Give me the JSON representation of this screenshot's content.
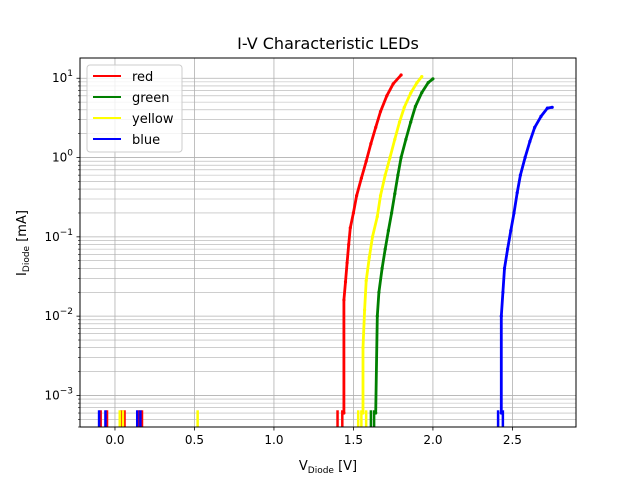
{
  "chart_data": {
    "type": "line",
    "title": "I-V Characteristic LEDs",
    "xlabel": {
      "main": "V",
      "sub": "Diode",
      "unit": " [V]"
    },
    "ylabel": {
      "main": "I",
      "sub": "Diode",
      "unit": " [mA]"
    },
    "xlim": [
      -0.22,
      2.9
    ],
    "ylim": [
      0.0004,
      18
    ],
    "yscale": "log",
    "grid": true,
    "legend_position": "top-left",
    "x_ticks": [
      {
        "value": 0.0,
        "label": "0.0"
      },
      {
        "value": 0.5,
        "label": "0.5"
      },
      {
        "value": 1.0,
        "label": "1.0"
      },
      {
        "value": 1.5,
        "label": "1.5"
      },
      {
        "value": 2.0,
        "label": "2.0"
      },
      {
        "value": 2.5,
        "label": "2.5"
      }
    ],
    "y_ticks": [
      {
        "value": 0.001,
        "base": "10",
        "exp": "−3"
      },
      {
        "value": 0.01,
        "base": "10",
        "exp": "−2"
      },
      {
        "value": 0.1,
        "base": "10",
        "exp": "−1"
      },
      {
        "value": 1,
        "base": "10",
        "exp": "0"
      },
      {
        "value": 10,
        "base": "10",
        "exp": "1"
      }
    ],
    "series": [
      {
        "name": "red",
        "color": "#ff0000",
        "points": [
          [
            1.44,
            0.0006
          ],
          [
            1.44,
            0.016
          ],
          [
            1.45,
            0.027
          ],
          [
            1.46,
            0.047
          ],
          [
            1.47,
            0.08
          ],
          [
            1.48,
            0.13
          ],
          [
            1.5,
            0.2
          ],
          [
            1.52,
            0.33
          ],
          [
            1.55,
            0.55
          ],
          [
            1.58,
            0.9
          ],
          [
            1.61,
            1.5
          ],
          [
            1.64,
            2.4
          ],
          [
            1.67,
            3.8
          ],
          [
            1.71,
            6.0
          ],
          [
            1.75,
            8.5
          ],
          [
            1.8,
            11.0
          ]
        ],
        "spikes": [
          -0.09,
          -0.05,
          0.04,
          0.06,
          0.15,
          0.17,
          1.4,
          1.43
        ]
      },
      {
        "name": "green",
        "color": "#008000",
        "points": [
          [
            1.64,
            0.0006
          ],
          [
            1.65,
            0.01
          ],
          [
            1.66,
            0.02
          ],
          [
            1.68,
            0.04
          ],
          [
            1.7,
            0.07
          ],
          [
            1.72,
            0.12
          ],
          [
            1.74,
            0.2
          ],
          [
            1.76,
            0.35
          ],
          [
            1.78,
            0.6
          ],
          [
            1.8,
            1.0
          ],
          [
            1.83,
            1.7
          ],
          [
            1.86,
            2.8
          ],
          [
            1.89,
            4.4
          ],
          [
            1.93,
            6.6
          ],
          [
            1.97,
            8.8
          ],
          [
            2.0,
            9.8
          ]
        ],
        "spikes": [
          1.61,
          1.63
        ]
      },
      {
        "name": "yellow",
        "color": "#ffff00",
        "points": [
          [
            1.56,
            0.0006
          ],
          [
            1.56,
            0.004
          ],
          [
            1.57,
            0.012
          ],
          [
            1.58,
            0.028
          ],
          [
            1.6,
            0.055
          ],
          [
            1.62,
            0.1
          ],
          [
            1.65,
            0.18
          ],
          [
            1.67,
            0.33
          ],
          [
            1.7,
            0.6
          ],
          [
            1.73,
            1.0
          ],
          [
            1.76,
            1.7
          ],
          [
            1.79,
            2.8
          ],
          [
            1.82,
            4.3
          ],
          [
            1.86,
            6.5
          ],
          [
            1.9,
            8.8
          ],
          [
            1.93,
            10.5
          ]
        ],
        "spikes": [
          0.03,
          0.05,
          0.52,
          1.53,
          1.55,
          1.58
        ]
      },
      {
        "name": "blue",
        "color": "#0000ff",
        "points": [
          [
            2.43,
            0.0006
          ],
          [
            2.43,
            0.01
          ],
          [
            2.44,
            0.02
          ],
          [
            2.45,
            0.04
          ],
          [
            2.47,
            0.07
          ],
          [
            2.49,
            0.12
          ],
          [
            2.51,
            0.2
          ],
          [
            2.53,
            0.36
          ],
          [
            2.55,
            0.6
          ],
          [
            2.58,
            1.0
          ],
          [
            2.61,
            1.6
          ],
          [
            2.64,
            2.4
          ],
          [
            2.68,
            3.3
          ],
          [
            2.72,
            4.2
          ],
          [
            2.75,
            4.3
          ]
        ],
        "spikes": [
          -0.1,
          -0.06,
          0.14,
          0.16,
          2.41,
          2.44
        ]
      }
    ]
  }
}
